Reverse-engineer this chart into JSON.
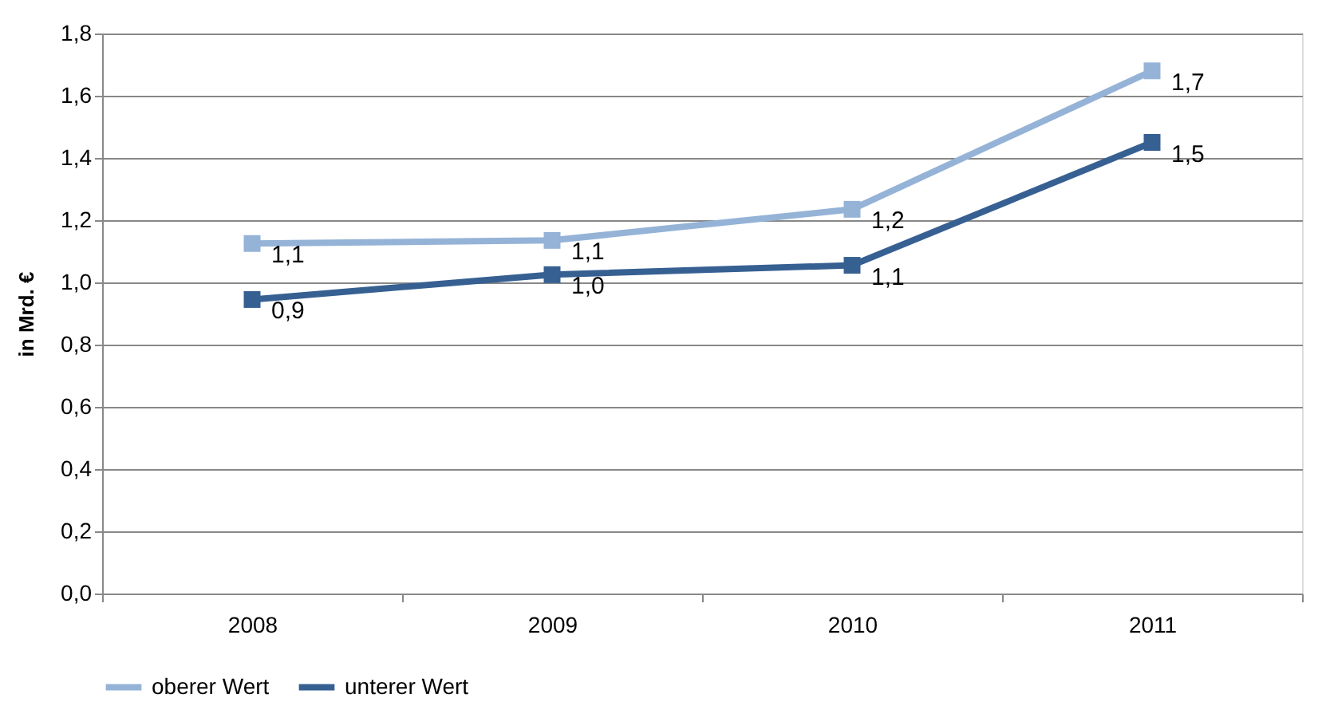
{
  "chart_data": {
    "type": "line",
    "ylabel": "in Mrd. €",
    "categories": [
      "2008",
      "2009",
      "2010",
      "2011"
    ],
    "series": [
      {
        "name": "oberer Wert",
        "color": "#95b3d7",
        "values": [
          1.125,
          1.135,
          1.235,
          1.68
        ],
        "value_labels": [
          "1,1",
          "1,1",
          "1,2",
          "1,7"
        ]
      },
      {
        "name": "unterer Wert",
        "color": "#376092",
        "values": [
          0.945,
          1.025,
          1.055,
          1.45
        ],
        "value_labels": [
          "0,9",
          "1,0",
          "1,1",
          "1,5"
        ]
      }
    ],
    "ylim": [
      0,
      1.8
    ],
    "yticks": [
      {
        "value": 0,
        "label": "0,0"
      },
      {
        "value": 0.2,
        "label": "0,2"
      },
      {
        "value": 0.4,
        "label": "0,4"
      },
      {
        "value": 0.6,
        "label": "0,6"
      },
      {
        "value": 0.8,
        "label": "0,8"
      },
      {
        "value": 1.0,
        "label": "1,0"
      },
      {
        "value": 1.2,
        "label": "1,2"
      },
      {
        "value": 1.4,
        "label": "1,4"
      },
      {
        "value": 1.6,
        "label": "1,6"
      },
      {
        "value": 1.8,
        "label": "1,8"
      }
    ],
    "grid": "y",
    "legend": "bottom",
    "marker": "square",
    "line_style": "solid"
  }
}
